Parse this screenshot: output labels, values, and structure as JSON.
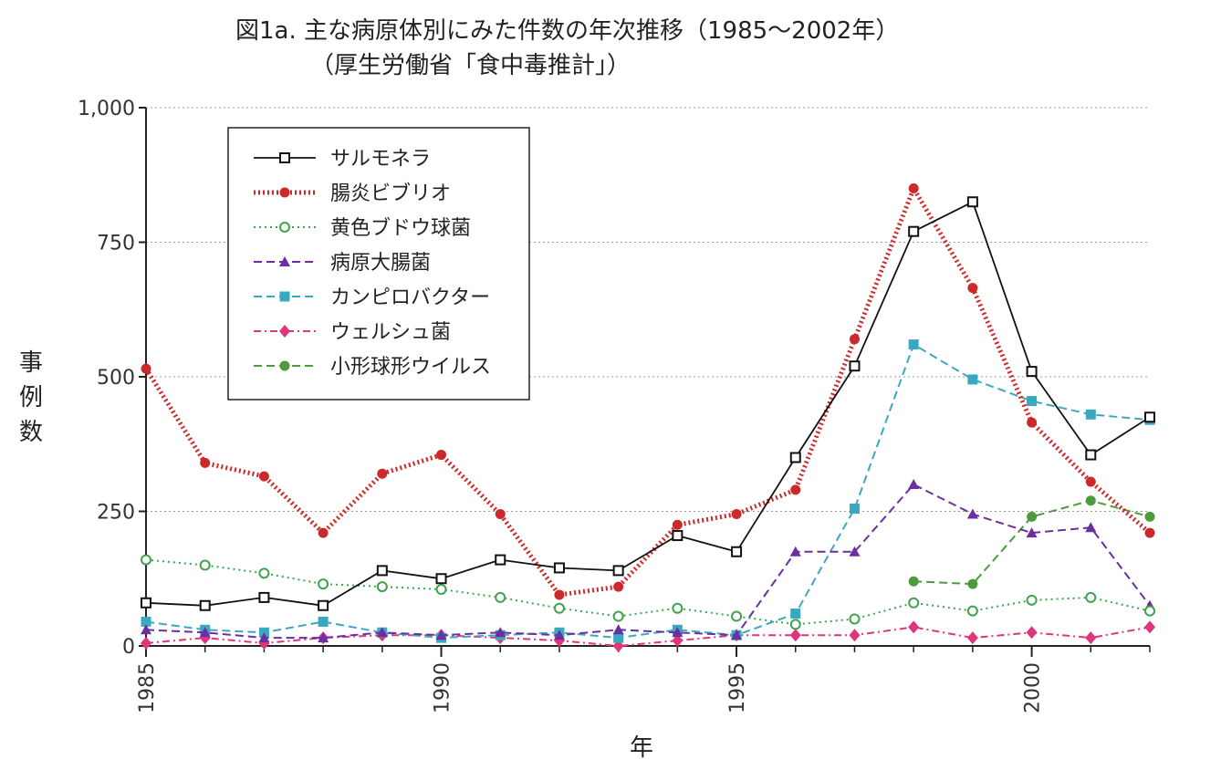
{
  "chart_data": {
    "type": "line",
    "title": "図1a. 主な病原体別にみた件数の年次推移（1985～2002年）",
    "subtitle": "（厚生労働省「食中毒推計」）",
    "xlabel": "年",
    "ylabel": "事例数",
    "x": [
      1985,
      1986,
      1987,
      1988,
      1989,
      1990,
      1991,
      1992,
      1993,
      1994,
      1995,
      1996,
      1997,
      1998,
      1999,
      2000,
      2001,
      2002
    ],
    "xticks": [
      1985,
      1990,
      1995,
      2000
    ],
    "yticks": [
      0,
      250,
      500,
      750,
      1000
    ],
    "ytick_labels": [
      "0",
      "250",
      "500",
      "750",
      "1,000"
    ],
    "ylim": [
      0,
      1000
    ],
    "grid": "horizontal dotted",
    "legend_position": "top-left",
    "series": [
      {
        "name": "サルモネラ",
        "color": "#111111",
        "marker": "open-square",
        "line": "solid",
        "values": [
          80,
          75,
          90,
          75,
          140,
          125,
          160,
          145,
          140,
          205,
          175,
          350,
          520,
          770,
          825,
          510,
          355,
          425
        ]
      },
      {
        "name": "腸炎ビブリオ",
        "color": "#cc2a2a",
        "marker": "filled-circle",
        "line": "thick-dotted",
        "values": [
          515,
          340,
          315,
          210,
          320,
          355,
          245,
          95,
          110,
          225,
          245,
          290,
          570,
          850,
          665,
          415,
          305,
          210
        ]
      },
      {
        "name": "黄色ブドウ球菌",
        "color": "#3fa34d",
        "marker": "open-circle",
        "line": "dotted",
        "values": [
          160,
          150,
          135,
          115,
          110,
          105,
          90,
          70,
          55,
          70,
          55,
          40,
          50,
          80,
          65,
          85,
          90,
          65
        ]
      },
      {
        "name": "病原大腸菌",
        "color": "#6a2fa0",
        "marker": "filled-triangle",
        "line": "dashed",
        "values": [
          30,
          25,
          15,
          15,
          25,
          20,
          25,
          20,
          30,
          25,
          20,
          175,
          175,
          300,
          245,
          210,
          220,
          75
        ]
      },
      {
        "name": "カンピロバクター",
        "color": "#3aa8c0",
        "marker": "filled-square",
        "line": "dashed",
        "values": [
          45,
          30,
          25,
          45,
          25,
          15,
          20,
          25,
          15,
          30,
          20,
          60,
          255,
          560,
          495,
          455,
          430,
          420
        ]
      },
      {
        "name": "ウェルシュ菌",
        "color": "#e0357a",
        "marker": "filled-diamond",
        "line": "dash-dot",
        "values": [
          5,
          15,
          5,
          15,
          20,
          20,
          15,
          10,
          0,
          10,
          20,
          20,
          20,
          35,
          15,
          25,
          15,
          35
        ]
      },
      {
        "name": "小形球形ウイルス",
        "color": "#4c9b3c",
        "marker": "filled-circle",
        "line": "dashed",
        "values": [
          null,
          null,
          null,
          null,
          null,
          null,
          null,
          null,
          null,
          null,
          null,
          null,
          null,
          120,
          115,
          240,
          270,
          240
        ]
      }
    ]
  }
}
